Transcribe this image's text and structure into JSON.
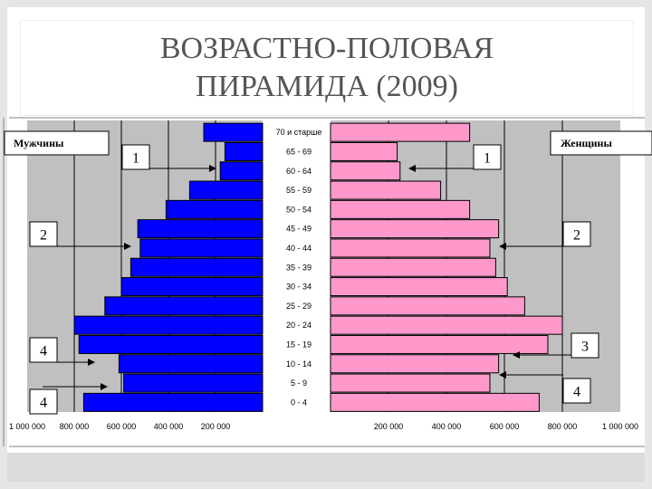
{
  "slide": {
    "title_line1": "ВОЗРАСТНО-ПОЛОВАЯ",
    "title_line2": "ПИРАМИДА (2009)"
  },
  "chart_data": {
    "type": "bar",
    "orientation": "horizontal-pyramid",
    "categories": [
      "0 - 4",
      "5 - 9",
      "10 - 14",
      "15 - 19",
      "20 - 24",
      "25 - 29",
      "30 - 34",
      "35 - 39",
      "40 - 44",
      "45 - 49",
      "50 - 54",
      "55 - 59",
      "60 - 64",
      "65 - 69",
      "70 и старше"
    ],
    "series": [
      {
        "name": "Мужчины",
        "color": "#0000ff",
        "values": [
          760000,
          590000,
          610000,
          780000,
          800000,
          670000,
          600000,
          560000,
          520000,
          530000,
          410000,
          310000,
          180000,
          160000,
          250000
        ]
      },
      {
        "name": "Женщины",
        "color": "#ff99cc",
        "values": [
          720000,
          550000,
          580000,
          750000,
          800000,
          670000,
          610000,
          570000,
          550000,
          580000,
          480000,
          380000,
          240000,
          230000,
          480000
        ]
      }
    ],
    "x_ticks_left": [
      "1 000 000",
      "800 000",
      "600 000",
      "400 000",
      "200 000"
    ],
    "x_ticks_right": [
      "200 000",
      "400 000",
      "600 000",
      "800 000",
      "1 000 000"
    ],
    "xlim": [
      0,
      1000000
    ],
    "grid": true,
    "legend_left": "Мужчины",
    "legend_right": "Женщины",
    "callouts": [
      {
        "label": "1",
        "side": "left",
        "target_category": "60 - 64"
      },
      {
        "label": "2",
        "side": "left",
        "target_category": "40 - 44"
      },
      {
        "label": "4",
        "side": "left",
        "target_category": "10 - 14"
      },
      {
        "label": "4",
        "side": "left",
        "target_category": "5 - 9"
      },
      {
        "label": "1",
        "side": "right",
        "target_category": "60 - 64"
      },
      {
        "label": "2",
        "side": "right",
        "target_category": "40 - 44"
      },
      {
        "label": "3",
        "side": "right",
        "target_category": "10 - 14"
      },
      {
        "label": "4",
        "side": "right",
        "target_category": "5 - 9"
      }
    ]
  }
}
